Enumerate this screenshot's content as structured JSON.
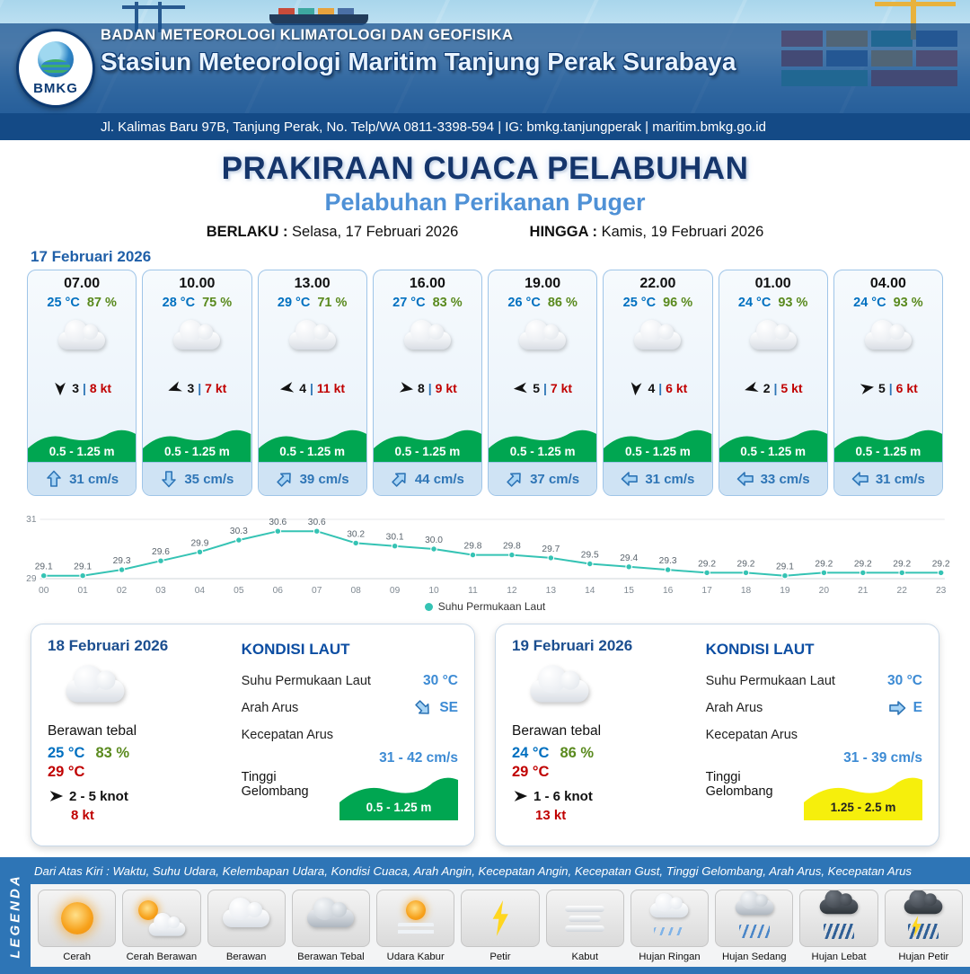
{
  "header": {
    "agency": "BADAN METEOROLOGI KLIMATOLOGI DAN GEOFISIKA",
    "station": "Stasiun Meteorologi Maritim Tanjung Perak Surabaya",
    "address": "Jl. Kalimas Baru 97B, Tanjung Perak, No. Telp/WA 0811-3398-594 | IG: bmkg.tanjungperak | maritim.bmkg.go.id",
    "logo_text": "BMKG"
  },
  "title": {
    "main": "PRAKIRAAN CUACA PELABUHAN",
    "port": "Pelabuhan Perikanan Puger",
    "berlaku_label": "BERLAKU :",
    "berlaku_value": "Selasa, 17 Februari 2026",
    "hingga_label": "HINGGA :",
    "hingga_value": "Kamis, 19 Februari 2026"
  },
  "forecast": {
    "date": "17 Februari 2026",
    "cards": [
      {
        "time": "07.00",
        "temp": "25 °C",
        "humidity": "87 %",
        "wind_speed": "3",
        "gust": "8 kt",
        "wind_deg": 180,
        "wave": "0.5 - 1.25 m",
        "current": "31 cm/s",
        "current_deg": 0
      },
      {
        "time": "10.00",
        "temp": "28 °C",
        "humidity": "75 %",
        "wind_speed": "3",
        "gust": "7 kt",
        "wind_deg": 250,
        "wave": "0.5 - 1.25 m",
        "current": "35 cm/s",
        "current_deg": 180
      },
      {
        "time": "13.00",
        "temp": "29 °C",
        "humidity": "71 %",
        "wind_speed": "4",
        "gust": "11 kt",
        "wind_deg": 260,
        "wave": "0.5 - 1.25 m",
        "current": "39 cm/s",
        "current_deg": 45
      },
      {
        "time": "16.00",
        "temp": "27 °C",
        "humidity": "83 %",
        "wind_speed": "8",
        "gust": "9 kt",
        "wind_deg": 100,
        "wave": "0.5 - 1.25 m",
        "current": "44 cm/s",
        "current_deg": 45
      },
      {
        "time": "19.00",
        "temp": "26 °C",
        "humidity": "86 %",
        "wind_speed": "5",
        "gust": "7 kt",
        "wind_deg": 265,
        "wave": "0.5 - 1.25 m",
        "current": "37 cm/s",
        "current_deg": 45
      },
      {
        "time": "22.00",
        "temp": "25 °C",
        "humidity": "96 %",
        "wind_speed": "4",
        "gust": "6 kt",
        "wind_deg": 185,
        "wave": "0.5 - 1.25 m",
        "current": "31 cm/s",
        "current_deg": 270
      },
      {
        "time": "01.00",
        "temp": "24 °C",
        "humidity": "93 %",
        "wind_speed": "2",
        "gust": "5 kt",
        "wind_deg": 255,
        "wave": "0.5 - 1.25 m",
        "current": "33 cm/s",
        "current_deg": 270
      },
      {
        "time": "04.00",
        "temp": "24 °C",
        "humidity": "93 %",
        "wind_speed": "5",
        "gust": "6 kt",
        "wind_deg": 80,
        "wave": "0.5 - 1.25 m",
        "current": "31 cm/s",
        "current_deg": 270
      }
    ]
  },
  "chart_data": {
    "type": "line",
    "title": "Suhu Permukaan Laut",
    "x": [
      "00",
      "01",
      "02",
      "03",
      "04",
      "05",
      "06",
      "07",
      "08",
      "09",
      "10",
      "11",
      "12",
      "13",
      "14",
      "15",
      "16",
      "17",
      "18",
      "19",
      "20",
      "21",
      "22",
      "23"
    ],
    "values": [
      29.1,
      29.1,
      29.3,
      29.6,
      29.9,
      30.3,
      30.6,
      30.6,
      30.2,
      30.1,
      30.0,
      29.8,
      29.8,
      29.7,
      29.5,
      29.4,
      29.3,
      29.2,
      29.2,
      29.1,
      29.2,
      29.2,
      29.2,
      29.2
    ],
    "xlabel": "",
    "ylabel": "",
    "ylim": [
      29,
      31
    ],
    "yticks": [
      29,
      31
    ],
    "line_color": "#35c3b4",
    "grid": true,
    "legend_position": "bottom"
  },
  "summaries": [
    {
      "date": "18 Februari 2026",
      "condition": "Berawan tebal",
      "temp_min": "25 °C",
      "humidity": "83 %",
      "temp_max": "29 °C",
      "wind_range": "2 - 5 knot",
      "gust": "8 kt",
      "wind_deg": 90,
      "sea": {
        "title": "KONDISI LAUT",
        "sst_label": "Suhu Permukaan Laut",
        "sst": "30 °C",
        "current_dir_label": "Arah Arus",
        "current_dir": "SE",
        "current_deg": 135,
        "current_speed_label": "Kecepatan Arus",
        "current_speed": "31 - 42 cm/s",
        "wave_label": "Tinggi Gelombang",
        "wave": "0.5 - 1.25 m",
        "wave_color": "#00a651",
        "wave_text_color": "#ffffff"
      }
    },
    {
      "date": "19 Februari 2026",
      "condition": "Berawan tebal",
      "temp_min": "24 °C",
      "humidity": "86 %",
      "temp_max": "29 °C",
      "wind_range": "1  - 6 knot",
      "gust": "13 kt",
      "wind_deg": 90,
      "sea": {
        "title": "KONDISI LAUT",
        "sst_label": "Suhu Permukaan Laut",
        "sst": "30 °C",
        "current_dir_label": "Arah Arus",
        "current_dir": "E",
        "current_deg": 90,
        "current_speed_label": "Kecepatan Arus",
        "current_speed": "31 - 39 cm/s",
        "wave_label": "Tinggi Gelombang",
        "wave": "1.25 - 2.5 m",
        "wave_color": "#f6ef0c",
        "wave_text_color": "#222222"
      }
    }
  ],
  "legend": {
    "title": "LEGENDA",
    "note": "Dari Atas Kiri : Waktu, Suhu Udara, Kelembapan Udara, Kondisi Cuaca, Arah Angin, Kecepatan Angin, Kecepatan Gust, Tinggi Gelombang, Arah Arus, Kecepatan Arus",
    "items": [
      {
        "label": "Cerah"
      },
      {
        "label": "Cerah Berawan"
      },
      {
        "label": "Berawan"
      },
      {
        "label": "Berawan Tebal"
      },
      {
        "label": "Udara Kabur"
      },
      {
        "label": "Petir"
      },
      {
        "label": "Kabut"
      },
      {
        "label": "Hujan Ringan"
      },
      {
        "label": "Hujan Sedang"
      },
      {
        "label": "Hujan Lebat"
      },
      {
        "label": "Hujan Petir"
      }
    ]
  },
  "colors": {
    "accent_blue": "#2e75b6",
    "temp_blue": "#0070c0",
    "humidity_green": "#5a8a1e",
    "gust_red": "#c00000",
    "wave_green": "#00a651",
    "wave_yellow": "#f6ef0c",
    "sst_line": "#35c3b4"
  }
}
